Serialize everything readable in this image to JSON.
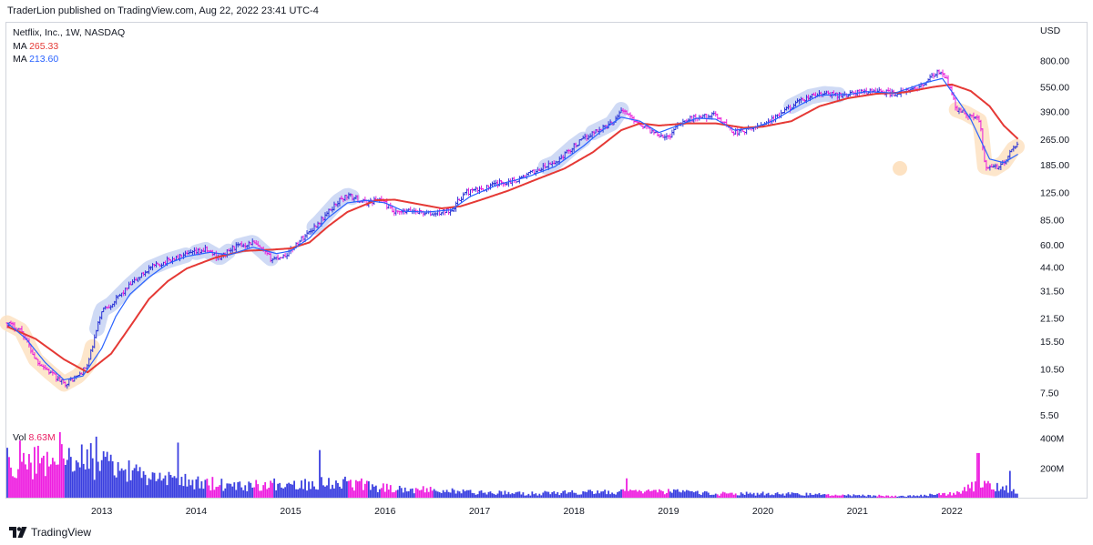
{
  "header": {
    "publish_line": "TraderLion published on TradingView.com, Aug 22, 2022 23:41 UTC-4"
  },
  "legend": {
    "symbol": "Netflix, Inc., 1W, NASDAQ",
    "ma_slow_label": "MA",
    "ma_slow_value": "265.33",
    "ma_fast_label": "MA",
    "ma_fast_value": "213.60",
    "vol_label": "Vol",
    "vol_value": "8.63M"
  },
  "footer": {
    "brand": "TradingView"
  },
  "colors": {
    "ma_slow": "#e53935",
    "ma_fast": "#2962ff",
    "bar_up": "#2b35d6",
    "bar_down": "#e91ed8",
    "vol_up": "#3a3fe0",
    "vol_down": "#ee1ee0",
    "highlight_blue": "#c7d3f3",
    "highlight_orange": "#fde2c2",
    "vol_value_color": "#e91e63"
  },
  "chart_data": {
    "type": "candlestick",
    "scale": "log",
    "y_axis_currency": "USD",
    "y_ticks": [
      800,
      550,
      390,
      265,
      185,
      125,
      85,
      60,
      44,
      31.5,
      21.5,
      15.5,
      10.5,
      7.5,
      5.5
    ],
    "y_tick_labels": [
      "800.00",
      "550.00",
      "390.00",
      "265.00",
      "185.00",
      "125.00",
      "85.00",
      "60.00",
      "44.00",
      "31.50",
      "21.50",
      "15.50",
      "10.50",
      "7.50",
      "5.50"
    ],
    "vol_ticks": [
      "400M",
      "200M"
    ],
    "x_tick_labels": [
      "2013",
      "2014",
      "2015",
      "2016",
      "2017",
      "2018",
      "2019",
      "2020",
      "2021",
      "2022"
    ],
    "x_range": [
      2012.0,
      2022.7
    ],
    "price_path": [
      [
        2012.0,
        20
      ],
      [
        2012.15,
        18
      ],
      [
        2012.3,
        12
      ],
      [
        2012.45,
        10
      ],
      [
        2012.6,
        8.5
      ],
      [
        2012.75,
        9.5
      ],
      [
        2012.85,
        11
      ],
      [
        2013.0,
        24
      ],
      [
        2013.1,
        26
      ],
      [
        2013.3,
        34
      ],
      [
        2013.5,
        43
      ],
      [
        2013.7,
        48
      ],
      [
        2013.9,
        52
      ],
      [
        2014.1,
        56
      ],
      [
        2014.25,
        50
      ],
      [
        2014.4,
        58
      ],
      [
        2014.6,
        62
      ],
      [
        2014.8,
        49
      ],
      [
        2014.95,
        52
      ],
      [
        2015.1,
        64
      ],
      [
        2015.3,
        82
      ],
      [
        2015.5,
        110
      ],
      [
        2015.6,
        120
      ],
      [
        2015.8,
        108
      ],
      [
        2015.95,
        115
      ],
      [
        2016.1,
        93
      ],
      [
        2016.3,
        97
      ],
      [
        2016.5,
        92
      ],
      [
        2016.7,
        98
      ],
      [
        2016.85,
        125
      ],
      [
        2017.0,
        130
      ],
      [
        2017.2,
        142
      ],
      [
        2017.4,
        150
      ],
      [
        2017.6,
        170
      ],
      [
        2017.8,
        190
      ],
      [
        2018.0,
        240
      ],
      [
        2018.2,
        290
      ],
      [
        2018.4,
        330
      ],
      [
        2018.5,
        400
      ],
      [
        2018.6,
        360
      ],
      [
        2018.8,
        300
      ],
      [
        2019.0,
        270
      ],
      [
        2019.1,
        330
      ],
      [
        2019.3,
        360
      ],
      [
        2019.5,
        370
      ],
      [
        2019.7,
        290
      ],
      [
        2019.85,
        300
      ],
      [
        2020.0,
        330
      ],
      [
        2020.15,
        360
      ],
      [
        2020.3,
        420
      ],
      [
        2020.5,
        480
      ],
      [
        2020.65,
        500
      ],
      [
        2020.85,
        490
      ],
      [
        2021.0,
        510
      ],
      [
        2021.2,
        520
      ],
      [
        2021.4,
        500
      ],
      [
        2021.6,
        530
      ],
      [
        2021.75,
        600
      ],
      [
        2021.85,
        680
      ],
      [
        2021.95,
        610
      ],
      [
        2022.05,
        400
      ],
      [
        2022.15,
        380
      ],
      [
        2022.3,
        340
      ],
      [
        2022.35,
        180
      ],
      [
        2022.45,
        175
      ],
      [
        2022.55,
        190
      ],
      [
        2022.65,
        230
      ],
      [
        2022.7,
        240
      ]
    ],
    "ma_slow_path": [
      [
        2012.0,
        19
      ],
      [
        2012.3,
        16
      ],
      [
        2012.6,
        12
      ],
      [
        2012.85,
        10
      ],
      [
        2013.1,
        13
      ],
      [
        2013.3,
        19
      ],
      [
        2013.5,
        28
      ],
      [
        2013.7,
        36
      ],
      [
        2013.9,
        43
      ],
      [
        2014.2,
        50
      ],
      [
        2014.5,
        55
      ],
      [
        2014.8,
        56
      ],
      [
        2015.0,
        57
      ],
      [
        2015.2,
        62
      ],
      [
        2015.4,
        78
      ],
      [
        2015.6,
        95
      ],
      [
        2015.9,
        112
      ],
      [
        2016.1,
        113
      ],
      [
        2016.4,
        105
      ],
      [
        2016.6,
        100
      ],
      [
        2016.8,
        103
      ],
      [
        2017.0,
        112
      ],
      [
        2017.3,
        128
      ],
      [
        2017.6,
        150
      ],
      [
        2017.9,
        175
      ],
      [
        2018.2,
        220
      ],
      [
        2018.5,
        300
      ],
      [
        2018.7,
        330
      ],
      [
        2018.9,
        320
      ],
      [
        2019.2,
        330
      ],
      [
        2019.5,
        330
      ],
      [
        2019.8,
        310
      ],
      [
        2020.0,
        315
      ],
      [
        2020.3,
        340
      ],
      [
        2020.6,
        420
      ],
      [
        2020.9,
        470
      ],
      [
        2021.2,
        500
      ],
      [
        2021.5,
        510
      ],
      [
        2021.8,
        550
      ],
      [
        2022.0,
        570
      ],
      [
        2022.2,
        520
      ],
      [
        2022.4,
        420
      ],
      [
        2022.55,
        320
      ],
      [
        2022.7,
        265
      ]
    ],
    "ma_fast_path": [
      [
        2012.0,
        20
      ],
      [
        2012.2,
        16
      ],
      [
        2012.4,
        11.5
      ],
      [
        2012.6,
        9
      ],
      [
        2012.8,
        9.5
      ],
      [
        2013.0,
        14
      ],
      [
        2013.15,
        22
      ],
      [
        2013.3,
        30
      ],
      [
        2013.5,
        38
      ],
      [
        2013.7,
        46
      ],
      [
        2013.9,
        51
      ],
      [
        2014.15,
        54
      ],
      [
        2014.35,
        52
      ],
      [
        2014.6,
        58
      ],
      [
        2014.85,
        53
      ],
      [
        2015.0,
        55
      ],
      [
        2015.2,
        66
      ],
      [
        2015.4,
        88
      ],
      [
        2015.6,
        108
      ],
      [
        2015.8,
        112
      ],
      [
        2016.0,
        108
      ],
      [
        2016.2,
        96
      ],
      [
        2016.45,
        95
      ],
      [
        2016.7,
        98
      ],
      [
        2016.9,
        118
      ],
      [
        2017.2,
        140
      ],
      [
        2017.5,
        155
      ],
      [
        2017.8,
        180
      ],
      [
        2018.1,
        240
      ],
      [
        2018.3,
        300
      ],
      [
        2018.5,
        360
      ],
      [
        2018.7,
        340
      ],
      [
        2018.9,
        290
      ],
      [
        2019.1,
        320
      ],
      [
        2019.3,
        355
      ],
      [
        2019.5,
        350
      ],
      [
        2019.7,
        300
      ],
      [
        2019.9,
        310
      ],
      [
        2020.1,
        340
      ],
      [
        2020.4,
        430
      ],
      [
        2020.6,
        490
      ],
      [
        2020.9,
        495
      ],
      [
        2021.1,
        515
      ],
      [
        2021.4,
        505
      ],
      [
        2021.7,
        580
      ],
      [
        2021.9,
        620
      ],
      [
        2022.05,
        470
      ],
      [
        2022.2,
        350
      ],
      [
        2022.4,
        200
      ],
      [
        2022.55,
        190
      ],
      [
        2022.7,
        214
      ]
    ],
    "volume_bins_m": [
      [
        2012.0,
        300
      ],
      [
        2012.4,
        260
      ],
      [
        2012.8,
        300
      ],
      [
        2013.0,
        240
      ],
      [
        2013.5,
        150
      ],
      [
        2014.0,
        110
      ],
      [
        2014.5,
        95
      ],
      [
        2015.0,
        100
      ],
      [
        2015.5,
        120
      ],
      [
        2016.0,
        75
      ],
      [
        2016.5,
        55
      ],
      [
        2017.0,
        40
      ],
      [
        2017.5,
        30
      ],
      [
        2018.0,
        40
      ],
      [
        2018.5,
        45
      ],
      [
        2019.0,
        45
      ],
      [
        2019.5,
        30
      ],
      [
        2020.0,
        30
      ],
      [
        2020.5,
        25
      ],
      [
        2021.0,
        18
      ],
      [
        2021.5,
        12
      ],
      [
        2022.0,
        30
      ],
      [
        2022.3,
        100
      ],
      [
        2022.7,
        45
      ]
    ],
    "volume_spikes": [
      [
        2012.55,
        440
      ],
      [
        2012.95,
        410
      ],
      [
        2013.8,
        370
      ],
      [
        2015.3,
        320
      ],
      [
        2018.55,
        130
      ],
      [
        2022.28,
        300
      ],
      [
        2022.62,
        180
      ]
    ],
    "volume_last_m": 8.63,
    "highlight_segments_blue": [
      [
        2012.95,
        2013.9
      ],
      [
        2014.0,
        2014.35
      ],
      [
        2014.45,
        2014.8
      ],
      [
        2015.25,
        2015.65
      ],
      [
        2017.7,
        2018.1
      ],
      [
        2018.2,
        2018.5
      ],
      [
        2020.3,
        2020.8
      ]
    ],
    "highlight_segments_orange": [
      [
        2012.0,
        2012.9
      ],
      [
        2022.05,
        2022.7
      ]
    ],
    "ma_slow_last": 265.33,
    "ma_fast_last": 213.6
  }
}
